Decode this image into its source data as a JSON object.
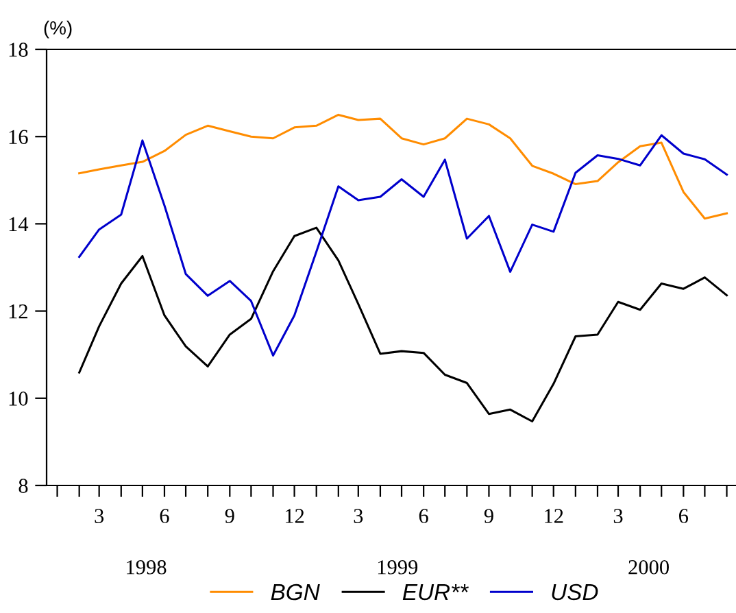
{
  "chart_data": {
    "type": "line",
    "ylabel": "(%)",
    "x": [
      "1998-02",
      "1998-03",
      "1998-04",
      "1998-05",
      "1998-06",
      "1998-07",
      "1998-08",
      "1998-09",
      "1998-10",
      "1998-11",
      "1998-12",
      "1999-01",
      "1999-02",
      "1999-03",
      "1999-04",
      "1999-05",
      "1999-06",
      "1999-07",
      "1999-08",
      "1999-09",
      "1999-10",
      "1999-11",
      "1999-12",
      "2000-01",
      "2000-02",
      "2000-03",
      "2000-04",
      "2000-05",
      "2000-06",
      "2000-07",
      "2000-08"
    ],
    "series": [
      {
        "name": "BGN",
        "color": "#ff8c00",
        "values": [
          15.16,
          15.25,
          15.34,
          15.42,
          15.67,
          16.04,
          16.25,
          16.12,
          16.0,
          15.96,
          16.21,
          16.25,
          16.5,
          16.38,
          16.41,
          15.96,
          15.82,
          15.96,
          16.41,
          16.28,
          15.96,
          15.33,
          15.15,
          14.91,
          14.98,
          15.41,
          15.78,
          15.86,
          14.73,
          14.12,
          14.24
        ]
      },
      {
        "name": "EUR**",
        "color": "#000000",
        "values": [
          10.59,
          11.65,
          12.63,
          13.26,
          11.9,
          11.19,
          10.73,
          11.46,
          11.82,
          12.91,
          13.72,
          13.91,
          13.16,
          12.16,
          11.02,
          11.08,
          11.04,
          10.54,
          10.35,
          9.64,
          9.74,
          9.47,
          10.33,
          11.42,
          11.46,
          12.21,
          12.03,
          12.63,
          12.51,
          12.77,
          12.36
        ]
      },
      {
        "name": "USD",
        "color": "#0000cc",
        "values": [
          13.24,
          13.87,
          14.21,
          15.91,
          14.42,
          12.85,
          12.35,
          12.69,
          12.23,
          10.98,
          11.9,
          13.36,
          14.86,
          14.54,
          14.62,
          15.02,
          14.62,
          15.47,
          13.66,
          14.18,
          12.9,
          13.98,
          13.82,
          15.17,
          15.57,
          15.49,
          15.34,
          16.03,
          15.61,
          15.48,
          15.13
        ]
      }
    ],
    "xlim": [
      "1997-12-17",
      "2000-08-14"
    ],
    "xticks": [
      {
        "value": "1998-01",
        "label": null
      },
      {
        "value": "1998-02",
        "label": null
      },
      {
        "value": "1998-03",
        "label": "3"
      },
      {
        "value": "1998-04",
        "label": null
      },
      {
        "value": "1998-05",
        "label": null
      },
      {
        "value": "1998-06",
        "label": "6"
      },
      {
        "value": "1998-07",
        "label": null
      },
      {
        "value": "1998-08",
        "label": null
      },
      {
        "value": "1998-09",
        "label": "9"
      },
      {
        "value": "1998-10",
        "label": null
      },
      {
        "value": "1998-11",
        "label": null
      },
      {
        "value": "1998-12",
        "label": "12"
      },
      {
        "value": "1999-01",
        "label": null
      },
      {
        "value": "1999-02",
        "label": null
      },
      {
        "value": "1999-03",
        "label": "3"
      },
      {
        "value": "1999-04",
        "label": null
      },
      {
        "value": "1999-05",
        "label": null
      },
      {
        "value": "1999-06",
        "label": "6"
      },
      {
        "value": "1999-07",
        "label": null
      },
      {
        "value": "1999-08",
        "label": null
      },
      {
        "value": "1999-09",
        "label": "9"
      },
      {
        "value": "1999-10",
        "label": null
      },
      {
        "value": "1999-11",
        "label": null
      },
      {
        "value": "1999-12",
        "label": "12"
      },
      {
        "value": "2000-01",
        "label": null
      },
      {
        "value": "2000-02",
        "label": null
      },
      {
        "value": "2000-03",
        "label": "3"
      },
      {
        "value": "2000-04",
        "label": null
      },
      {
        "value": "2000-05",
        "label": null
      },
      {
        "value": "2000-06",
        "label": "6"
      },
      {
        "value": "2000-07",
        "label": null
      },
      {
        "value": "2000-08",
        "label": null
      }
    ],
    "ylim": [
      8,
      18
    ],
    "yticks": [
      8,
      10,
      12,
      14,
      16,
      18
    ],
    "annotations": [
      "1998",
      "1999",
      "2000"
    ],
    "grid": false,
    "legend": "bottom",
    "marker": "none",
    "line_style": "solid"
  }
}
